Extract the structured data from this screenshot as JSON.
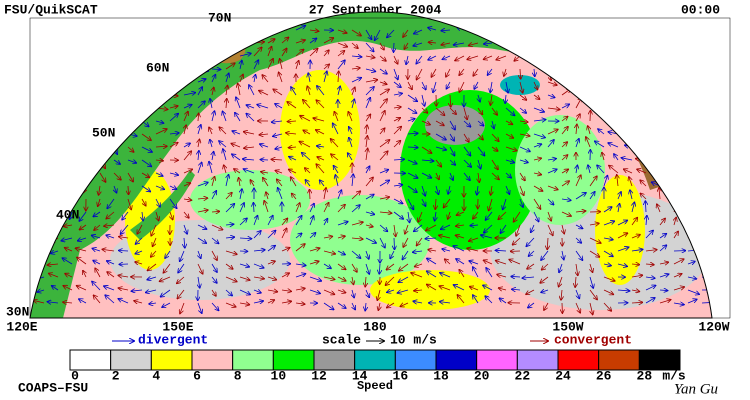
{
  "header": {
    "left": "FSU/QuikSCAT",
    "title": "27 September 2004",
    "right": "00:00"
  },
  "map": {
    "lat_labels": [
      "70N",
      "60N",
      "50N",
      "40N",
      "30N"
    ],
    "lon_labels": [
      "120E",
      "150E",
      "180",
      "150W",
      "120W"
    ]
  },
  "legend": {
    "divergent": "divergent",
    "scale": "scale",
    "scale_value": "10 m/s",
    "convergent": "convergent"
  },
  "colorbar": {
    "colors": [
      "#ffffff",
      "#d3d3d3",
      "#ffff00",
      "#ffc0c0",
      "#90ff90",
      "#00ee00",
      "#999999",
      "#00b4b4",
      "#3c8cff",
      "#0000c8",
      "#ff64ff",
      "#b48cff",
      "#ff0000",
      "#c83c00",
      "#000000"
    ],
    "ticks": [
      "0",
      "2",
      "4",
      "6",
      "8",
      "10",
      "12",
      "14",
      "16",
      "18",
      "20",
      "22",
      "24",
      "26",
      "28"
    ],
    "unit": "m/s",
    "label": "Speed"
  },
  "footer": {
    "left": "COAPS–FSU",
    "right": "Yan Gu"
  }
}
